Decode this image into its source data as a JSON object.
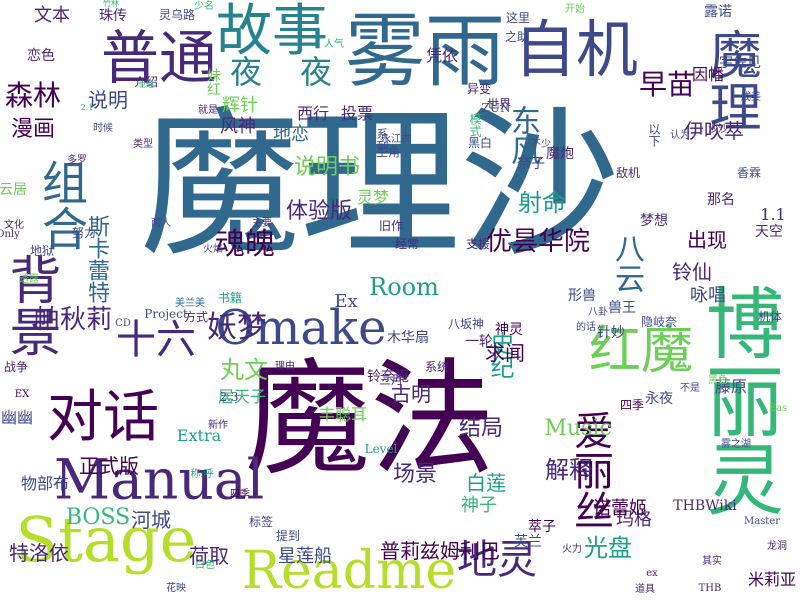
{
  "palette": {
    "background": "#ffffff",
    "p1": "#440154",
    "p2": "#482878",
    "p3": "#3e4989",
    "p4": "#31688e",
    "p5": "#26828e",
    "p6": "#1f9e89",
    "p7": "#35b779",
    "p8": "#6ece58",
    "p9": "#b5de2b"
  },
  "words": [
    {
      "text": "魔理沙",
      "color": "p4"
    },
    {
      "text": "魔法",
      "color": "p1"
    },
    {
      "text": "雾雨",
      "color": "p4"
    },
    {
      "text": "博丽灵",
      "color": "p7"
    },
    {
      "text": "自机",
      "color": "p3"
    },
    {
      "text": "魔理",
      "color": "p3"
    },
    {
      "text": "普通",
      "color": "p2"
    },
    {
      "text": "故事",
      "color": "p5"
    },
    {
      "text": "背景",
      "color": "p2"
    },
    {
      "text": "组合",
      "color": "p4"
    },
    {
      "text": "对话",
      "color": "p1"
    },
    {
      "text": "Manual",
      "color": "p2"
    },
    {
      "text": "Stage",
      "color": "p9"
    },
    {
      "text": "Readme",
      "color": "p9"
    },
    {
      "text": "Omake",
      "color": "p3"
    },
    {
      "text": "红魔",
      "color": "p8"
    },
    {
      "text": "爱丽丝",
      "color": "p1"
    },
    {
      "text": "地灵",
      "color": "p2"
    },
    {
      "text": "十六",
      "color": "p2"
    },
    {
      "text": "妖梦",
      "color": "p2"
    },
    {
      "text": "魂魄",
      "color": "p1"
    },
    {
      "text": "八云",
      "color": "p4"
    },
    {
      "text": "夜",
      "color": "p5"
    },
    {
      "text": "夜",
      "color": "p5"
    },
    {
      "text": "早苗",
      "color": "p1"
    },
    {
      "text": "森林",
      "color": "p1"
    },
    {
      "text": "东风",
      "color": "p4"
    },
    {
      "text": "漫画",
      "color": "p1"
    },
    {
      "text": "文本",
      "color": "p2"
    },
    {
      "text": "说明",
      "color": "p3"
    },
    {
      "text": "说明书",
      "color": "p8"
    },
    {
      "text": "射命",
      "color": "p6"
    },
    {
      "text": "体验版",
      "color": "p2"
    },
    {
      "text": "优昙华院",
      "color": "p1"
    },
    {
      "text": "伊吹萃",
      "color": "p2"
    },
    {
      "text": "出现",
      "color": "p1"
    },
    {
      "text": "铃仙",
      "color": "p2"
    },
    {
      "text": "Room",
      "color": "p6"
    },
    {
      "text": "帕秋莉",
      "color": "p2"
    },
    {
      "text": "丸文",
      "color": "p8"
    },
    {
      "text": "史纪",
      "color": "p6"
    },
    {
      "text": "求闻",
      "color": "p1"
    },
    {
      "text": "古明",
      "color": "p2"
    },
    {
      "text": "结局",
      "color": "p2"
    },
    {
      "text": "Music",
      "color": "p8"
    },
    {
      "text": "解释",
      "color": "p2"
    },
    {
      "text": "场景",
      "color": "p2"
    },
    {
      "text": "光盘",
      "color": "p6"
    },
    {
      "text": "正式版",
      "color": "p1"
    },
    {
      "text": "BOSS",
      "color": "p7"
    },
    {
      "text": "河城",
      "color": "p3"
    },
    {
      "text": "荷取",
      "color": "p2"
    },
    {
      "text": "玛格",
      "color": "p2"
    },
    {
      "text": "特洛依",
      "color": "p2"
    },
    {
      "text": "白莲",
      "color": "p6"
    },
    {
      "text": "斯卡蕾特",
      "color": "p4"
    },
    {
      "text": "咏唱",
      "color": "p3"
    },
    {
      "text": "辉针",
      "color": "p8"
    },
    {
      "text": "风神",
      "color": "p2"
    },
    {
      "text": "1.1",
      "color": "p2"
    },
    {
      "text": "地恋",
      "color": "p4"
    },
    {
      "text": "Ex",
      "color": "p3"
    },
    {
      "text": "Extra",
      "color": "p6"
    },
    {
      "text": "丰聪耳",
      "color": "p8"
    },
    {
      "text": "星莲船",
      "color": "p3"
    },
    {
      "text": "普莉兹姆利巴",
      "color": "p1"
    },
    {
      "text": "神子",
      "color": "p7"
    },
    {
      "text": "灵梦",
      "color": "p8"
    },
    {
      "text": "藤原",
      "color": "p3"
    },
    {
      "text": "米莉亚",
      "color": "p1"
    },
    {
      "text": "诺蕾姬",
      "color": "p1"
    },
    {
      "text": "居天子",
      "color": "p7"
    },
    {
      "text": "物部布",
      "color": "p3"
    },
    {
      "text": "幽幽",
      "color": "p3"
    },
    {
      "text": "珠传",
      "color": "p2"
    },
    {
      "text": "露诺",
      "color": "p3"
    },
    {
      "text": "恋色",
      "color": "p2"
    },
    {
      "text": "介绍",
      "color": "p2"
    },
    {
      "text": "凭依",
      "color": "p2"
    },
    {
      "text": "宇佐见",
      "color": "p3"
    },
    {
      "text": "因幡",
      "color": "p1"
    },
    {
      "text": "西行",
      "color": "p2"
    },
    {
      "text": "投票",
      "color": "p2"
    },
    {
      "text": "云居",
      "color": "p8"
    },
    {
      "text": "妹红",
      "color": "p8"
    },
    {
      "text": "魔炮",
      "color": "p2"
    },
    {
      "text": "奈子",
      "color": "p3"
    },
    {
      "text": "梦想",
      "color": "p2"
    },
    {
      "text": "那名",
      "color": "p2"
    },
    {
      "text": "天空",
      "color": "p2"
    },
    {
      "text": "永夜",
      "color": "p3"
    },
    {
      "text": "一轮",
      "color": "p2"
    },
    {
      "text": "神灵",
      "color": "p1"
    },
    {
      "text": "形兽",
      "color": "p3"
    },
    {
      "text": "针妙",
      "color": "p3"
    },
    {
      "text": "兽王",
      "color": "p3"
    },
    {
      "text": "萃子",
      "color": "p1"
    },
    {
      "text": "芙兰",
      "color": "p3"
    },
    {
      "text": "THBWiki",
      "color": "p2"
    },
    {
      "text": "四季",
      "color": "p1"
    },
    {
      "text": "铃奈庵",
      "color": "p2"
    },
    {
      "text": "木华扇",
      "color": "p3"
    },
    {
      "text": "系统",
      "color": "p2"
    },
    {
      "text": "Level",
      "color": "p6"
    },
    {
      "text": "三月",
      "color": "p2"
    },
    {
      "text": "八坂神",
      "color": "p3"
    },
    {
      "text": "隐岐奈",
      "color": "p3"
    },
    {
      "text": "机体",
      "color": "p3"
    },
    {
      "text": "火力",
      "color": "p2"
    },
    {
      "text": "Master",
      "color": "p3"
    },
    {
      "text": "龙洞",
      "color": "p2"
    },
    {
      "text": "道具",
      "color": "p2"
    },
    {
      "text": "THB",
      "color": "p2"
    },
    {
      "text": "其实",
      "color": "p2"
    },
    {
      "text": "ex",
      "color": "p2"
    },
    {
      "text": "花映",
      "color": "p3"
    },
    {
      "text": "白色",
      "color": "p7"
    },
    {
      "text": "提到",
      "color": "p3"
    },
    {
      "text": "标签",
      "color": "p3"
    },
    {
      "text": "称:呼",
      "color": "p6"
    },
    {
      "text": "新作",
      "color": "p2"
    },
    {
      "text": "战争",
      "color": "p2"
    },
    {
      "text": "EX",
      "color": "p1"
    },
    {
      "text": "2.3",
      "color": "p3"
    },
    {
      "text": "Project",
      "color": "p3"
    },
    {
      "text": "方式",
      "color": "p2"
    },
    {
      "text": "书籍",
      "color": "p6"
    },
    {
      "text": "地狱",
      "color": "p3"
    },
    {
      "text": "努力",
      "color": "p3"
    },
    {
      "text": "透露",
      "color": "p8"
    },
    {
      "text": "Only",
      "color": "p2"
    },
    {
      "text": "文化",
      "color": "p2"
    },
    {
      "text": "多罗",
      "color": "p2"
    },
    {
      "text": "类型",
      "color": "p2"
    },
    {
      "text": "时候",
      "color": "p3"
    },
    {
      "text": "就是",
      "color": "p2"
    },
    {
      "text": "火焰",
      "color": "p3"
    },
    {
      "text": "主要",
      "color": "p2"
    },
    {
      "text": "两人",
      "color": "p3"
    },
    {
      "text": "旧作",
      "color": "p2"
    },
    {
      "text": "经常",
      "color": "p2"
    },
    {
      "text": "支援",
      "color": "p2"
    },
    {
      "text": "敌机",
      "color": "p2"
    },
    {
      "text": "香霖",
      "color": "p3"
    },
    {
      "text": "以下",
      "color": "p3"
    },
    {
      "text": "认为",
      "color": "p3"
    },
    {
      "text": "沙沙",
      "color": "p2"
    },
    {
      "text": "成美",
      "color": "p3"
    },
    {
      "text": "这里",
      "color": "p3"
    },
    {
      "text": "之助",
      "color": "p3"
    },
    {
      "text": "异变",
      "color": "p2"
    },
    {
      "text": "世界",
      "color": "p2"
    },
    {
      "text": "模式",
      "color": "p7"
    },
    {
      "text": "系列",
      "color": "p3"
    },
    {
      "text": "ZUN",
      "color": "p3"
    },
    {
      "text": "人气",
      "color": "p7"
    },
    {
      "text": "少名",
      "color": "p7"
    },
    {
      "text": "灵乌路",
      "color": "p3"
    },
    {
      "text": "永江衣",
      "color": "p3"
    },
    {
      "text": "主角",
      "color": "p3"
    },
    {
      "text": "黑白",
      "color": "p3"
    },
    {
      "text": "不少",
      "color": "p3"
    },
    {
      "text": "开始",
      "color": "p8"
    },
    {
      "text": "竹林",
      "color": "p7"
    },
    {
      "text": "也是",
      "color": "p7"
    },
    {
      "text": "2.1",
      "color": "p7"
    },
    {
      "text": "美兰美",
      "color": "p4"
    },
    {
      "text": "CD",
      "color": "p3"
    },
    {
      "text": "八卦",
      "color": "p3"
    },
    {
      "text": "的话",
      "color": "p3"
    },
    {
      "text": "理由",
      "color": "p2"
    },
    {
      "text": "四季",
      "color": "p1"
    },
    {
      "text": "黑色",
      "color": "p8"
    },
    {
      "text": "不是",
      "color": "p3"
    },
    {
      "text": "雾之湖",
      "color": "p3"
    },
    {
      "text": "Eas",
      "color": "p8"
    }
  ]
}
